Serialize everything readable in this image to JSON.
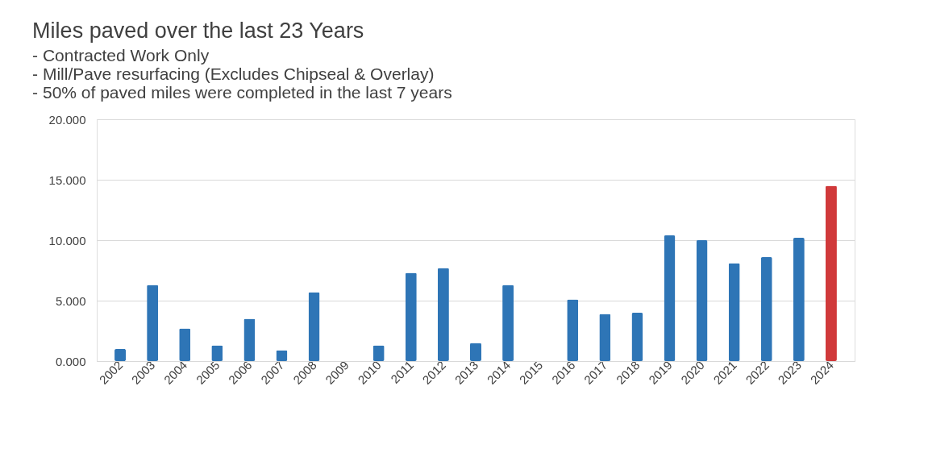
{
  "chart_data": {
    "type": "bar",
    "title": "Miles paved over the last 23 Years",
    "subtitle": [
      "- Contracted Work Only",
      "- Mill/Pave resurfacing (Excludes Chipseal & Overlay)",
      "- 50% of paved miles were completed in the last 7 years"
    ],
    "categories": [
      "2002",
      "2003",
      "2004",
      "2005",
      "2006",
      "2007",
      "2008",
      "2009",
      "2010",
      "2011",
      "2012",
      "2013",
      "2014",
      "2015",
      "2016",
      "2017",
      "2018",
      "2019",
      "2020",
      "2021",
      "2022",
      "2023",
      "2024"
    ],
    "values": [
      1.0,
      6.3,
      2.7,
      1.3,
      3.5,
      0.9,
      5.7,
      null,
      1.3,
      7.3,
      7.7,
      1.5,
      6.3,
      null,
      5.1,
      3.9,
      4.0,
      10.4,
      10.0,
      8.1,
      8.6,
      10.2,
      14.5
    ],
    "colors": [
      "#2e75b6",
      "#2e75b6",
      "#2e75b6",
      "#2e75b6",
      "#2e75b6",
      "#2e75b6",
      "#2e75b6",
      "#2e75b6",
      "#2e75b6",
      "#2e75b6",
      "#2e75b6",
      "#2e75b6",
      "#2e75b6",
      "#2e75b6",
      "#2e75b6",
      "#2e75b6",
      "#2e75b6",
      "#2e75b6",
      "#2e75b6",
      "#2e75b6",
      "#2e75b6",
      "#2e75b6",
      "#d0393a"
    ],
    "ylim": [
      0,
      20
    ],
    "yticks": [
      {
        "value": 0,
        "label": "0.000"
      },
      {
        "value": 5,
        "label": "5.000"
      },
      {
        "value": 10,
        "label": "10.000"
      },
      {
        "value": 15,
        "label": "15.000"
      },
      {
        "value": 20,
        "label": "20.000"
      }
    ],
    "grid": "y"
  }
}
